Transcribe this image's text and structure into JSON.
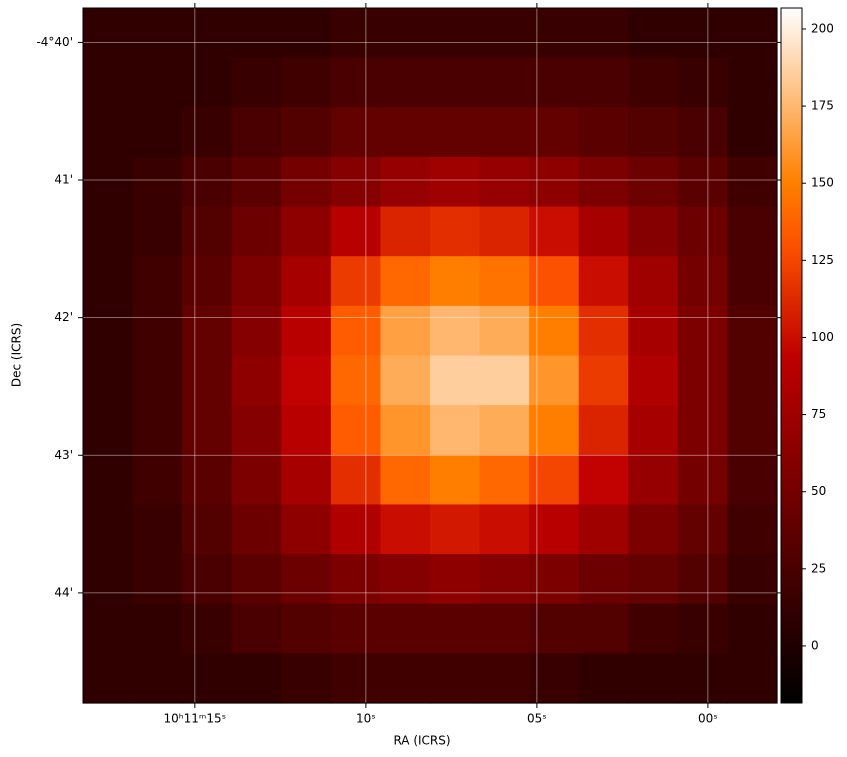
{
  "chart_data": {
    "type": "heatmap",
    "xlabel": "RA (ICRS)",
    "ylabel": "Dec (ICRS)",
    "xlim": [
      18.27,
      -2.02
    ],
    "ylim": [
      44.8,
      39.75
    ],
    "xticks": [
      {
        "value": 15,
        "label": "10ʰ11ᵐ15ˢ"
      },
      {
        "value": 10,
        "label": "10ˢ"
      },
      {
        "value": 5,
        "label": "05ˢ"
      },
      {
        "value": 0,
        "label": "00ˢ"
      }
    ],
    "yticks": [
      {
        "value": 40,
        "label": "-4°40'"
      },
      {
        "value": 41,
        "label": "41'"
      },
      {
        "value": 42,
        "label": "42'"
      },
      {
        "value": 43,
        "label": "43'"
      },
      {
        "value": 44,
        "label": "44'"
      }
    ],
    "grid": true,
    "colormap": "gist_heat",
    "clim": [
      -18.5,
      206.8
    ],
    "cticks": [
      0,
      25,
      50,
      75,
      100,
      125,
      150,
      175,
      200
    ],
    "z": [
      [
        10,
        10,
        10,
        10,
        10,
        15,
        15,
        15,
        15,
        15,
        15,
        10,
        10,
        10
      ],
      [
        10,
        10,
        10,
        15,
        20,
        25,
        25,
        25,
        25,
        25,
        25,
        20,
        15,
        10
      ],
      [
        10,
        10,
        15,
        25,
        30,
        40,
        40,
        40,
        40,
        40,
        35,
        30,
        25,
        10
      ],
      [
        10,
        15,
        25,
        35,
        50,
        60,
        70,
        75,
        70,
        65,
        55,
        45,
        35,
        20
      ],
      [
        10,
        15,
        30,
        45,
        65,
        90,
        110,
        115,
        110,
        100,
        80,
        60,
        45,
        25
      ],
      [
        10,
        20,
        35,
        55,
        80,
        120,
        140,
        150,
        145,
        130,
        100,
        75,
        50,
        25
      ],
      [
        10,
        20,
        40,
        60,
        90,
        135,
        165,
        175,
        170,
        150,
        115,
        80,
        55,
        30
      ],
      [
        10,
        20,
        40,
        65,
        95,
        140,
        170,
        185,
        185,
        160,
        120,
        85,
        55,
        30
      ],
      [
        10,
        20,
        40,
        60,
        90,
        135,
        160,
        175,
        170,
        150,
        110,
        80,
        55,
        30
      ],
      [
        10,
        20,
        35,
        55,
        80,
        115,
        140,
        150,
        140,
        125,
        95,
        70,
        50,
        25
      ],
      [
        10,
        15,
        30,
        45,
        65,
        85,
        100,
        105,
        100,
        90,
        75,
        55,
        40,
        20
      ],
      [
        10,
        15,
        25,
        35,
        45,
        55,
        60,
        65,
        60,
        55,
        45,
        40,
        30,
        15
      ],
      [
        10,
        10,
        15,
        25,
        30,
        35,
        35,
        35,
        35,
        30,
        30,
        20,
        15,
        10
      ],
      [
        10,
        10,
        10,
        10,
        15,
        20,
        20,
        20,
        20,
        15,
        10,
        10,
        10,
        10
      ]
    ]
  }
}
